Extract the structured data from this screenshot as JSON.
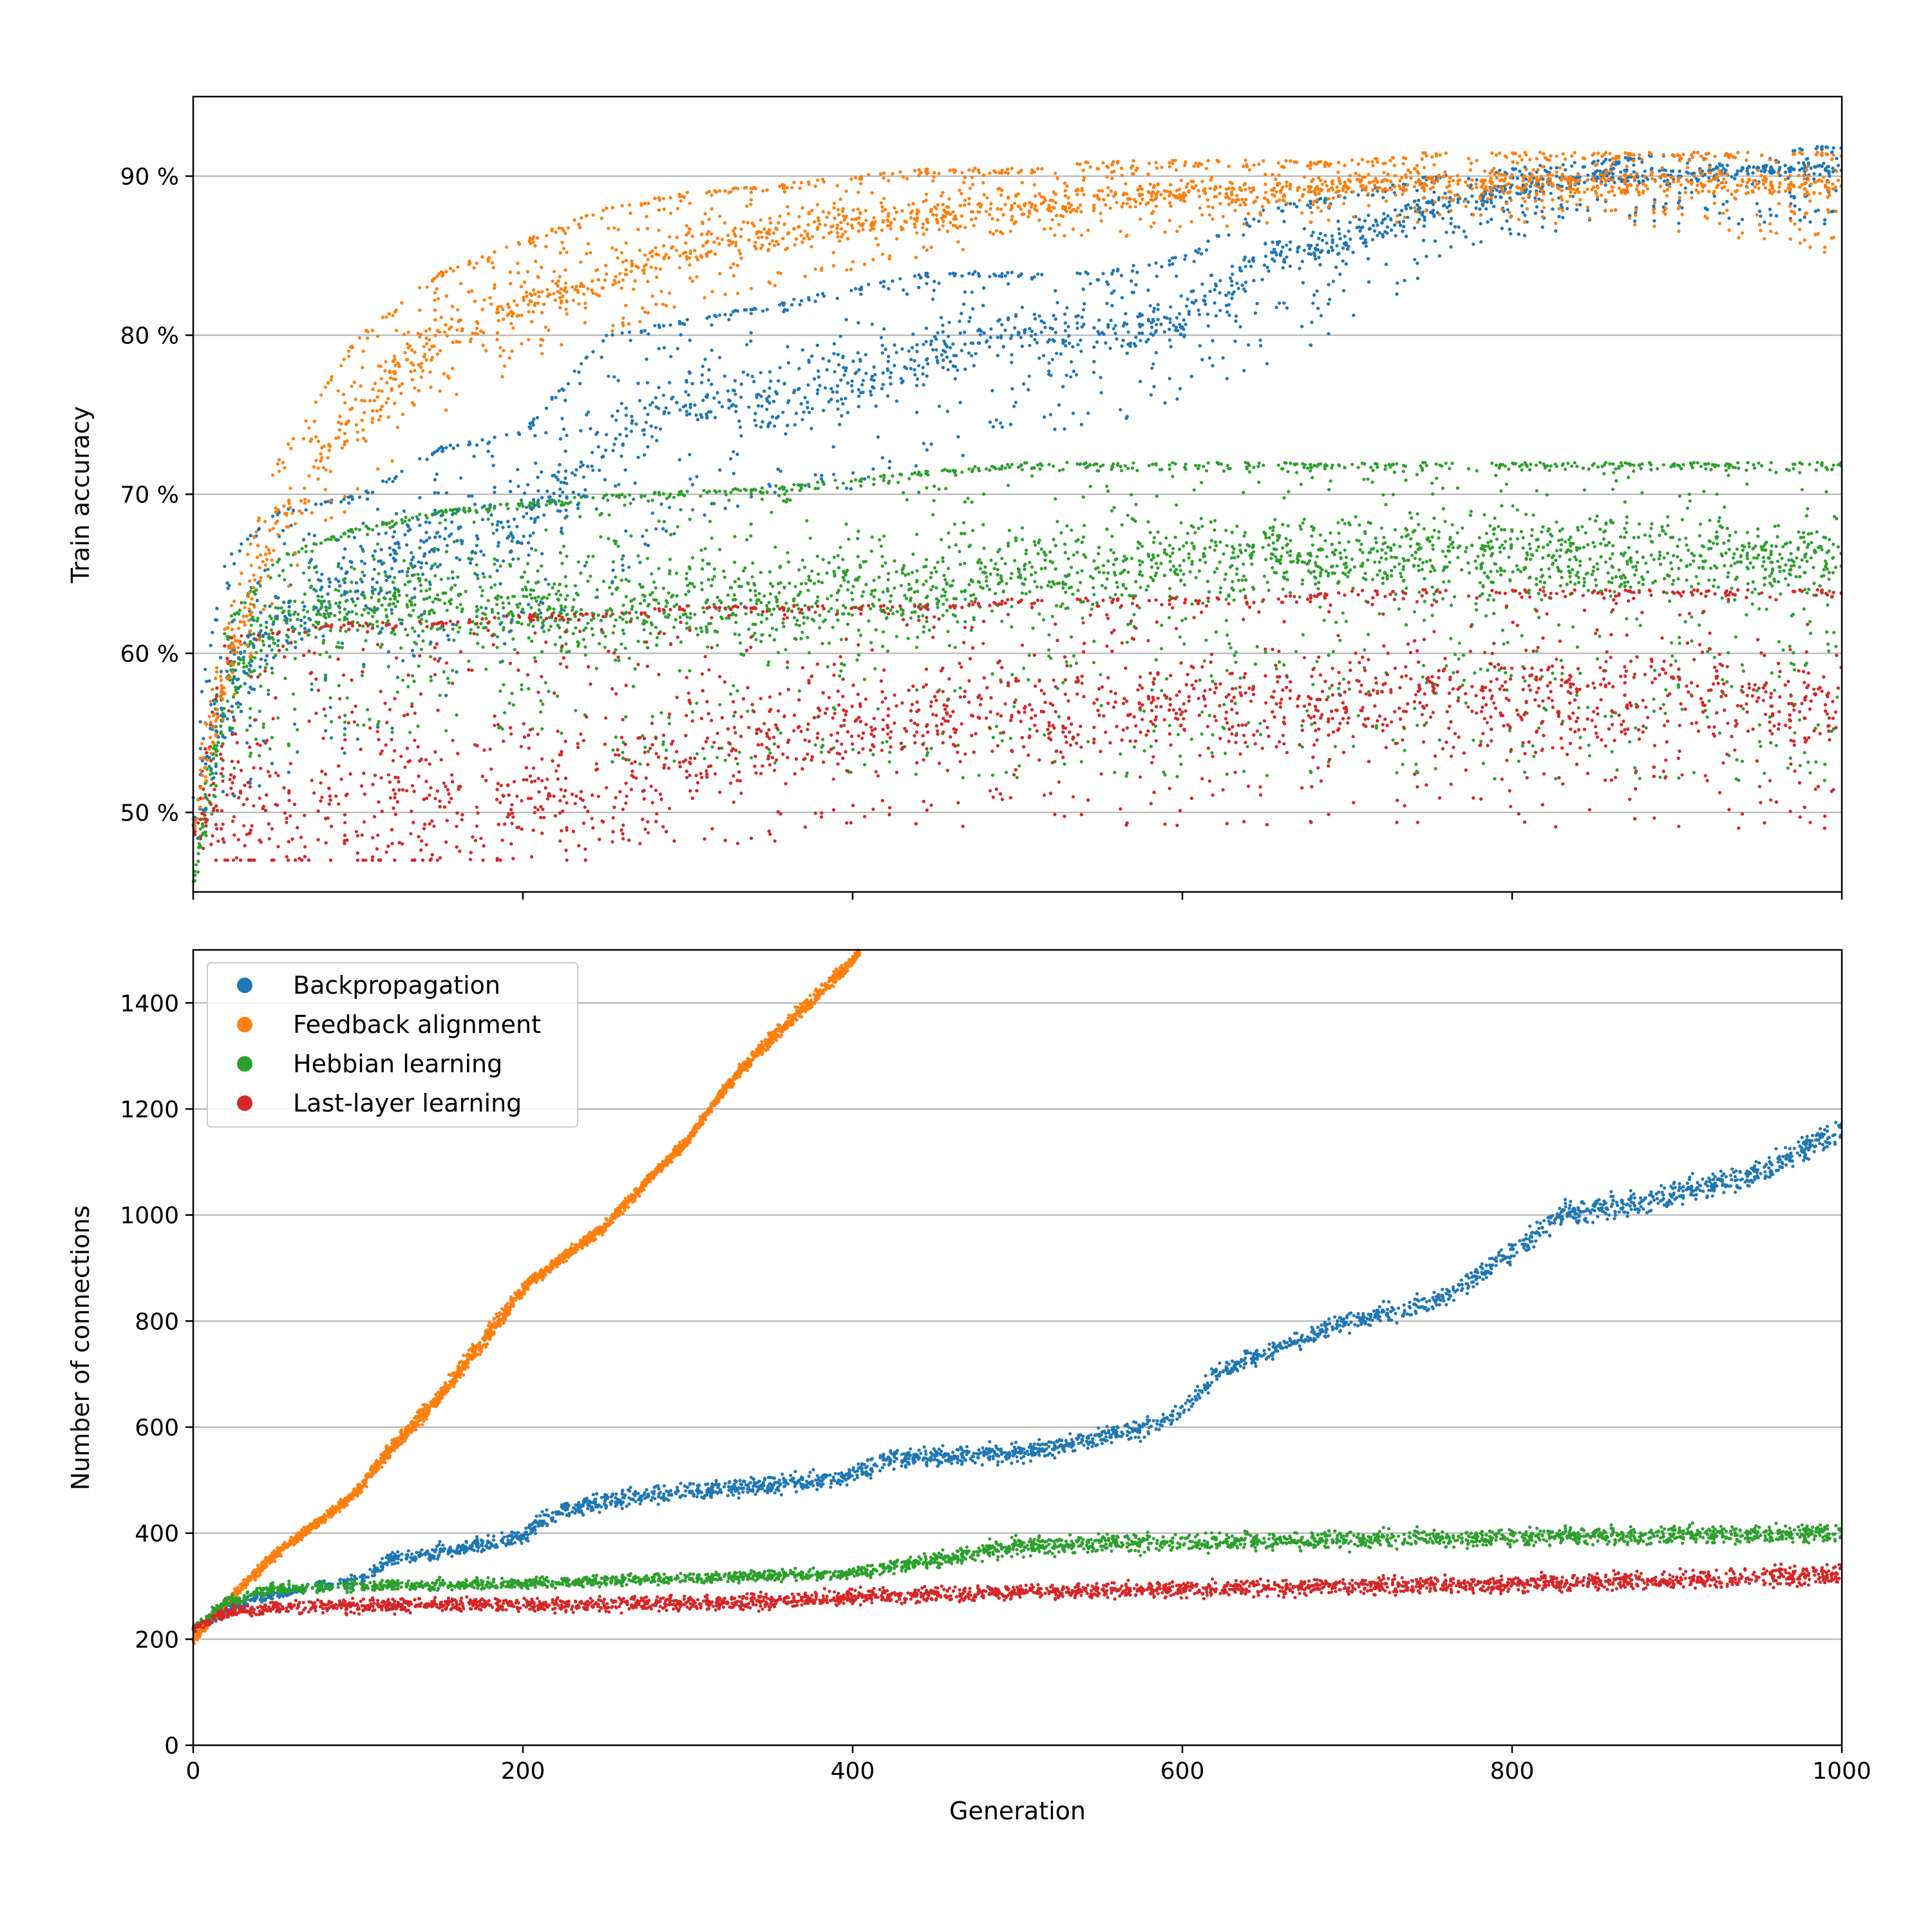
{
  "colors": {
    "backpropagation": "#1f77b4",
    "feedback_alignment": "#ff7f0e",
    "hebbian_learning": "#2ca02c",
    "last_layer_learning": "#d62728",
    "grid": "#b0b0b0",
    "axes": "#000000"
  },
  "chart_data": [
    {
      "type": "scatter",
      "panel": "top",
      "ylabel": "Train accuracy",
      "xlabel": "",
      "xlim": [
        0,
        1000
      ],
      "ylim": [
        45,
        95
      ],
      "xticks": [
        0,
        200,
        400,
        600,
        800,
        1000
      ],
      "show_xtick_labels": false,
      "yticks": [
        {
          "value": 50,
          "label": "50 %"
        },
        {
          "value": 60,
          "label": "60 %"
        },
        {
          "value": 70,
          "label": "70 %"
        },
        {
          "value": 80,
          "label": "80 %"
        },
        {
          "value": 90,
          "label": "90 %"
        }
      ],
      "grid": "horizontal",
      "series": [
        {
          "name": "Hebbian learning",
          "color_key": "hebbian_learning",
          "x": [
            0,
            20,
            50,
            100,
            150,
            200,
            250,
            300,
            350,
            400,
            450,
            500,
            550,
            600,
            650,
            700,
            750,
            800,
            850,
            900,
            950,
            1000
          ],
          "y_upper": [
            46,
            62,
            66,
            68,
            69,
            69.5,
            70,
            70.2,
            70.5,
            71,
            71.5,
            72,
            72,
            72,
            72,
            72,
            72,
            72,
            72,
            72,
            72,
            72
          ],
          "y_lower": [
            45,
            52,
            54,
            55,
            55,
            55,
            53,
            53,
            53,
            52,
            52,
            52,
            52,
            52,
            52,
            52,
            52,
            52,
            52,
            52,
            52,
            52
          ],
          "y_center": [
            45.5,
            58,
            62,
            63,
            63,
            63,
            63,
            63,
            63,
            64,
            64,
            65,
            65,
            66,
            66,
            66,
            66,
            66,
            66,
            66,
            66,
            66
          ]
        },
        {
          "name": "Last-layer learning",
          "color_key": "last_layer_learning",
          "x": [
            0,
            20,
            50,
            100,
            150,
            200,
            250,
            300,
            350,
            400,
            450,
            500,
            550,
            600,
            650,
            700,
            750,
            800,
            850,
            900,
            950,
            1000
          ],
          "y_upper": [
            50,
            61,
            61.5,
            62,
            62,
            62.5,
            62.5,
            63,
            63,
            63,
            63,
            63.5,
            63.5,
            63.5,
            63.5,
            64,
            64,
            64,
            64,
            64,
            64,
            64
          ],
          "y_lower": [
            48,
            48,
            48,
            48,
            48,
            48,
            48,
            48,
            48,
            49,
            49,
            49,
            49,
            49,
            49,
            49,
            49,
            49,
            49,
            49,
            49,
            49
          ],
          "y_center": [
            49,
            50,
            50,
            50,
            50,
            51,
            52,
            54,
            55,
            55,
            56,
            56,
            56,
            57,
            57,
            57,
            57,
            57,
            57,
            57,
            57,
            57
          ]
        },
        {
          "name": "Backpropagation",
          "color_key": "backpropagation",
          "x": [
            0,
            20,
            50,
            100,
            150,
            200,
            250,
            300,
            350,
            400,
            450,
            500,
            550,
            600,
            650,
            700,
            750,
            800,
            850,
            900,
            950,
            1000
          ],
          "y_upper": [
            55,
            66,
            69,
            70,
            73,
            74,
            80,
            81,
            82,
            83,
            84,
            84,
            84,
            85,
            88,
            89,
            90,
            90.5,
            91,
            91.5,
            91.5,
            92
          ],
          "y_lower": [
            47,
            50,
            52,
            54,
            57,
            60,
            64,
            68,
            70,
            70,
            72,
            73,
            74,
            76,
            78,
            80,
            84,
            86,
            87,
            87,
            87,
            87
          ],
          "y_center": [
            50,
            58,
            62,
            65,
            67,
            68,
            74,
            76,
            76,
            77,
            79,
            80,
            80,
            81,
            85,
            86,
            88,
            89,
            90,
            90,
            90.5,
            90.5
          ]
        },
        {
          "name": "Feedback alignment",
          "color_key": "feedback_alignment",
          "x": [
            0,
            20,
            50,
            100,
            150,
            200,
            250,
            300,
            350,
            400,
            450,
            500,
            550,
            600,
            650,
            700,
            750,
            800,
            850,
            900,
            950,
            1000
          ],
          "y_upper": [
            52,
            62,
            72,
            80,
            84,
            86,
            88,
            89,
            89.5,
            90,
            90.5,
            90.5,
            91,
            91,
            91,
            91,
            91.5,
            91.5,
            91.5,
            91.5,
            91.5,
            91.5
          ],
          "y_lower": [
            48,
            56,
            63,
            70,
            75,
            78,
            80,
            82,
            83,
            84,
            85,
            86,
            86,
            86.5,
            87,
            87,
            87,
            87,
            87,
            86.5,
            86,
            85
          ],
          "y_center": [
            49,
            59,
            68,
            75,
            80,
            82,
            84,
            85.5,
            86.5,
            87,
            87.5,
            88,
            88.5,
            89,
            89,
            89.5,
            89.5,
            89.5,
            89.5,
            89.5,
            89.5,
            89.5
          ]
        }
      ]
    },
    {
      "type": "scatter",
      "panel": "bottom",
      "ylabel": "Number of connections",
      "xlabel": "Generation",
      "xlim": [
        0,
        1000
      ],
      "ylim": [
        0,
        1500
      ],
      "xticks": [
        {
          "value": 0,
          "label": "0"
        },
        {
          "value": 200,
          "label": "200"
        },
        {
          "value": 400,
          "label": "400"
        },
        {
          "value": 600,
          "label": "600"
        },
        {
          "value": 800,
          "label": "800"
        },
        {
          "value": 1000,
          "label": "1000"
        }
      ],
      "yticks": [
        {
          "value": 0,
          "label": "0"
        },
        {
          "value": 200,
          "label": "200"
        },
        {
          "value": 400,
          "label": "400"
        },
        {
          "value": 600,
          "label": "600"
        },
        {
          "value": 800,
          "label": "800"
        },
        {
          "value": 1000,
          "label": "1000"
        },
        {
          "value": 1200,
          "label": "1200"
        },
        {
          "value": 1400,
          "label": "1400"
        }
      ],
      "grid": "horizontal",
      "legend": {
        "placement": "top-left",
        "entries": [
          {
            "label": "Backpropagation",
            "color_key": "backpropagation"
          },
          {
            "label": "Feedback alignment",
            "color_key": "feedback_alignment"
          },
          {
            "label": "Hebbian learning",
            "color_key": "hebbian_learning"
          },
          {
            "label": "Last-layer learning",
            "color_key": "last_layer_learning"
          }
        ]
      },
      "series": [
        {
          "name": "Backpropagation",
          "color_key": "backpropagation",
          "x": [
            0,
            25,
            50,
            75,
            100,
            120,
            150,
            180,
            200,
            220,
            250,
            300,
            350,
            400,
            420,
            450,
            500,
            550,
            580,
            600,
            620,
            650,
            700,
            750,
            780,
            800,
            830,
            850,
            900,
            950,
            980,
            1000
          ],
          "y_center": [
            220,
            265,
            285,
            300,
            310,
            350,
            365,
            380,
            395,
            440,
            460,
            480,
            490,
            510,
            540,
            545,
            550,
            580,
            600,
            630,
            700,
            740,
            800,
            830,
            890,
            930,
            1000,
            1010,
            1040,
            1080,
            1130,
            1160
          ],
          "y_spread": [
            10,
            15,
            15,
            15,
            15,
            20,
            20,
            20,
            25,
            25,
            25,
            25,
            25,
            25,
            25,
            25,
            25,
            25,
            25,
            25,
            25,
            25,
            25,
            30,
            30,
            30,
            35,
            35,
            35,
            35,
            35,
            35
          ]
        },
        {
          "name": "Feedback alignment",
          "color_key": "feedback_alignment",
          "x": [
            0,
            20,
            50,
            80,
            100,
            120,
            150,
            180,
            200,
            220,
            250,
            280,
            300,
            320,
            340,
            360,
            380,
            400,
            405
          ],
          "y_center": [
            200,
            270,
            360,
            430,
            480,
            560,
            660,
            780,
            860,
            910,
            980,
            1080,
            1140,
            1230,
            1300,
            1360,
            1420,
            1480,
            1500
          ],
          "y_spread": [
            15,
            15,
            15,
            15,
            15,
            20,
            20,
            25,
            20,
            15,
            15,
            15,
            15,
            15,
            20,
            20,
            20,
            15,
            10
          ]
        },
        {
          "name": "Hebbian learning",
          "color_key": "hebbian_learning",
          "x": [
            0,
            20,
            50,
            100,
            150,
            200,
            250,
            300,
            350,
            400,
            450,
            500,
            550,
            600,
            650,
            700,
            750,
            800,
            850,
            900,
            950,
            1000
          ],
          "y_center": [
            220,
            270,
            295,
            300,
            302,
            305,
            310,
            315,
            320,
            325,
            350,
            375,
            380,
            382,
            385,
            388,
            390,
            392,
            395,
            397,
            398,
            400
          ],
          "y_spread": [
            10,
            15,
            15,
            15,
            15,
            15,
            15,
            15,
            15,
            15,
            20,
            25,
            25,
            25,
            25,
            25,
            25,
            25,
            25,
            25,
            25,
            25
          ]
        },
        {
          "name": "Last-layer learning",
          "color_key": "last_layer_learning",
          "x": [
            0,
            20,
            50,
            100,
            150,
            200,
            250,
            300,
            350,
            400,
            450,
            500,
            550,
            600,
            650,
            700,
            750,
            800,
            850,
            900,
            950,
            1000
          ],
          "y_center": [
            220,
            250,
            260,
            262,
            265,
            265,
            265,
            268,
            272,
            280,
            285,
            288,
            292,
            295,
            298,
            300,
            302,
            305,
            308,
            312,
            318,
            322
          ],
          "y_spread": [
            10,
            15,
            20,
            20,
            20,
            20,
            20,
            20,
            20,
            20,
            20,
            22,
            22,
            22,
            22,
            24,
            24,
            24,
            25,
            25,
            28,
            30
          ]
        }
      ]
    }
  ]
}
